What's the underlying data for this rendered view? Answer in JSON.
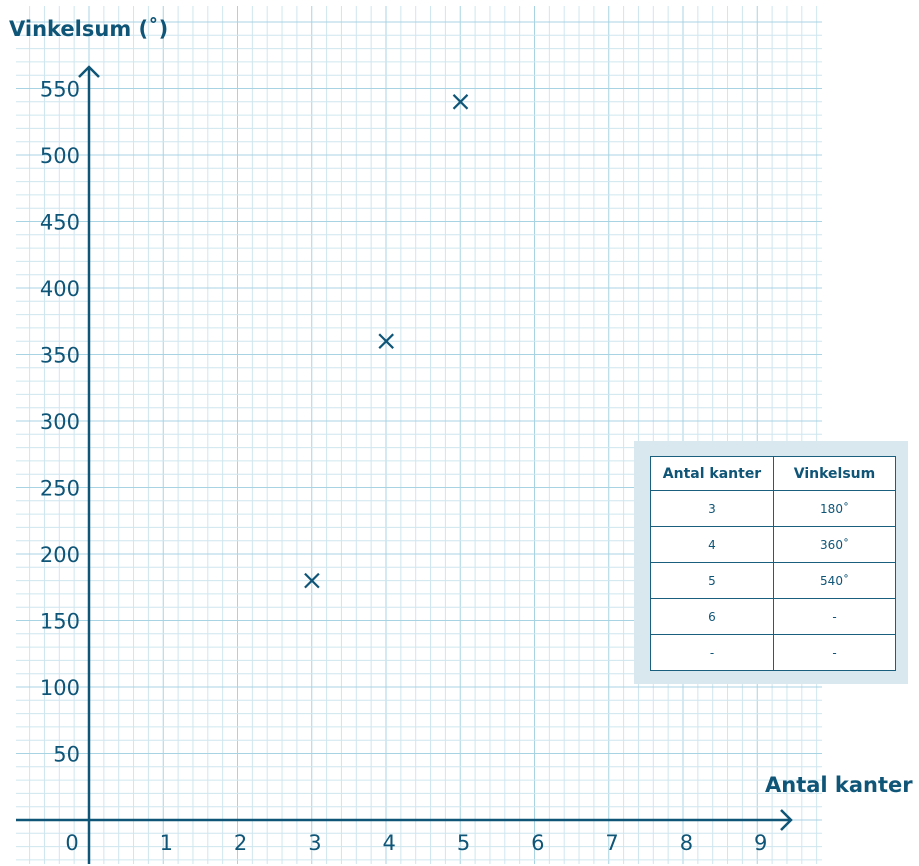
{
  "chart_data": {
    "type": "scatter",
    "xlabel": "Antal kanter",
    "ylabel": "Vinkelsum (˚)",
    "x_ticks": [
      "0",
      "1",
      "2",
      "3",
      "4",
      "5",
      "6",
      "7",
      "8",
      "9"
    ],
    "y_ticks": [
      "50",
      "100",
      "150",
      "200",
      "250",
      "300",
      "350",
      "400",
      "450",
      "500",
      "550"
    ],
    "xlim": [
      0,
      9
    ],
    "ylim": [
      0,
      550
    ],
    "grid": true,
    "points": [
      {
        "x": 3,
        "y": 180
      },
      {
        "x": 4,
        "y": 360
      },
      {
        "x": 5,
        "y": 540
      }
    ],
    "marker": "x",
    "colors": {
      "axis": "#0f5577",
      "grid_minor": "#cfe6ef",
      "grid_major": "#a8d3e3",
      "marker": "#0f5577"
    }
  },
  "table": {
    "headers": [
      "Antal kanter",
      "Vinkelsum"
    ],
    "rows": [
      [
        "3",
        "180˚"
      ],
      [
        "4",
        "360˚"
      ],
      [
        "5",
        "540˚"
      ],
      [
        "6",
        "-"
      ],
      [
        "-",
        "-"
      ]
    ]
  }
}
